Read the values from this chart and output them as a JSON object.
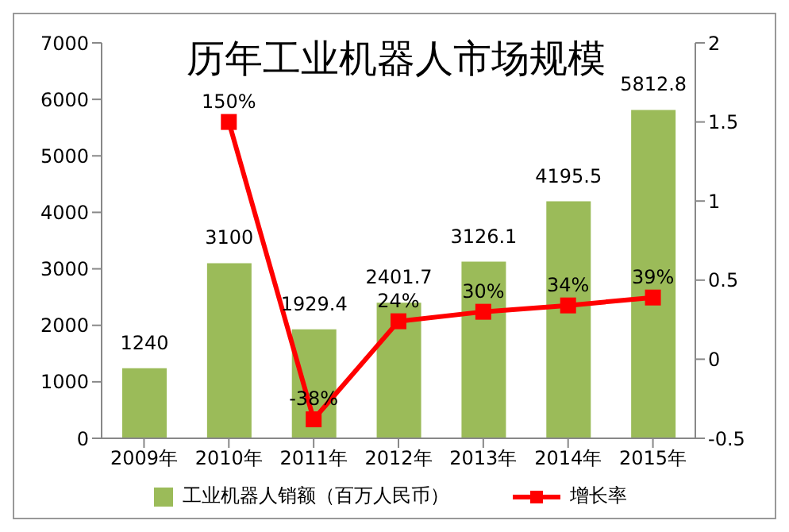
{
  "chart_data": {
    "type": "bar",
    "title": "历年工业机器人市场规模",
    "categories": [
      "2009年",
      "2010年",
      "2011年",
      "2012年",
      "2013年",
      "2014年",
      "2015年"
    ],
    "series": [
      {
        "name": "工业机器人销额（百万人民币）",
        "color": "#9bbb59",
        "values": [
          1240,
          3100,
          1929.4,
          2401.7,
          3126.1,
          4195.5,
          5812.8
        ],
        "value_labels": [
          "1240",
          "3100",
          "1929.4",
          "2401.7",
          "3126.1",
          "4195.5",
          "5812.8"
        ]
      },
      {
        "name": "增长率",
        "type": "line",
        "axis": "y2",
        "color": "#ff0000",
        "marker": "square",
        "values": [
          null,
          1.5,
          -0.38,
          0.24,
          0.3,
          0.34,
          0.39
        ],
        "value_labels": [
          null,
          "150%",
          "-38%",
          "24%",
          "30%",
          "34%",
          "39%"
        ]
      }
    ],
    "ylim": [
      0,
      7000
    ],
    "yticks": [
      0,
      1000,
      2000,
      3000,
      4000,
      5000,
      6000,
      7000
    ],
    "y2lim": [
      -0.5,
      2
    ],
    "y2ticks": [
      -0.5,
      0,
      0.5,
      1,
      1.5,
      2
    ],
    "grid": false,
    "legend": "bottom"
  }
}
